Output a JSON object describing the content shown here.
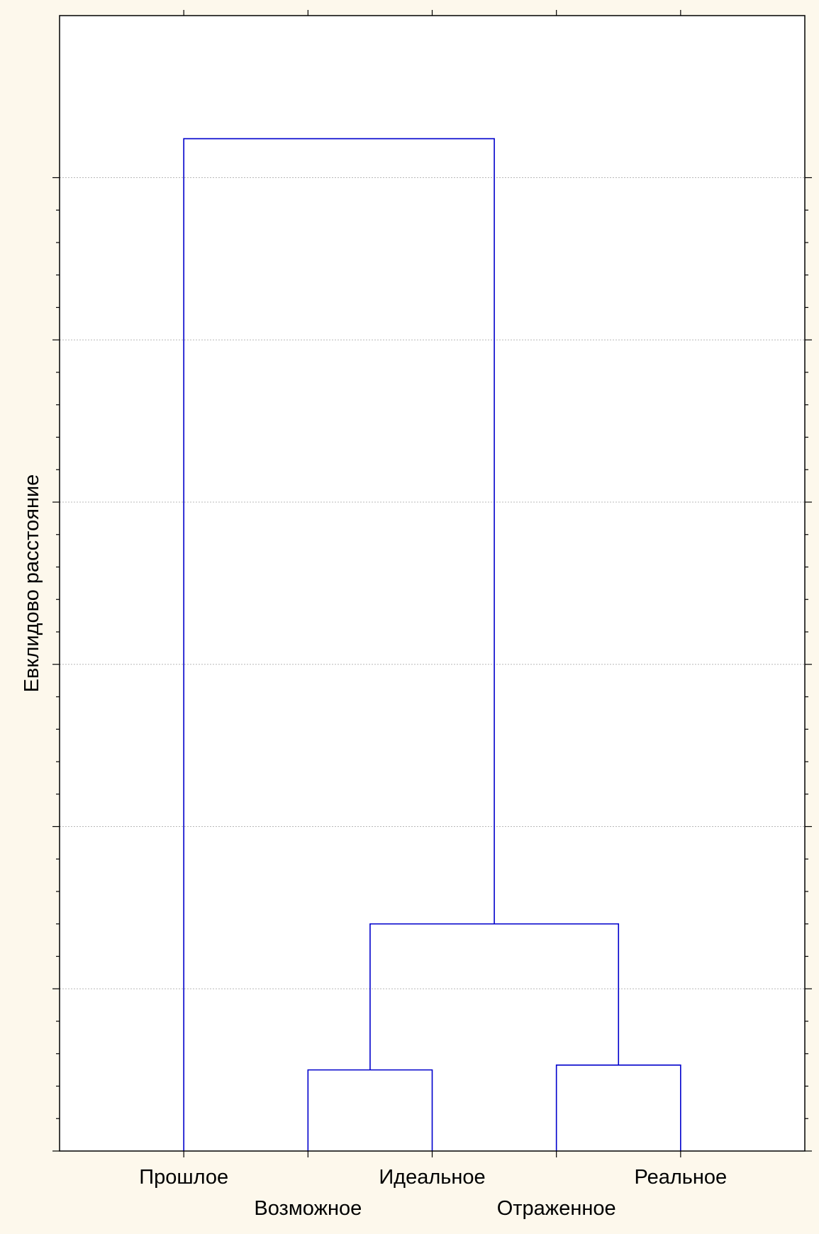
{
  "chart_data": {
    "type": "dendrogram",
    "ylabel": "Евклидово расстояние",
    "title": "",
    "xlabel": "",
    "leaves": [
      "Прошлое",
      "Возможное",
      "Идеальное",
      "Отраженное",
      "Реальное"
    ],
    "ylim": [
      0,
      30
    ],
    "major_ticks": [
      0,
      5,
      10,
      15,
      20,
      25,
      30
    ],
    "minor_tick_step": 1,
    "grid": "horizontal dotted at major ticks",
    "y_tick_labels_shown": false,
    "merges": [
      {
        "name": "Возможное+Идеальное",
        "left": "Возможное",
        "right": "Идеальное",
        "height": 2.5
      },
      {
        "name": "Отраженное+Реальное",
        "left": "Отраженное",
        "right": "Реальное",
        "height": 2.65
      },
      {
        "name": "Возможное+Идеальное+Отраженное+Реальное",
        "left": "Возможное+Идеальное",
        "right": "Отраженное+Реальное",
        "height": 7.0
      },
      {
        "name": "all",
        "left": "Прошлое",
        "right": "Возможное+Идеальное+Отраженное+Реальное",
        "height": 31.2
      }
    ]
  },
  "colors": {
    "background": "#fdf8ec",
    "plot_background": "#ffffff",
    "link_color": "#0000cc",
    "axis_color": "#000000",
    "grid_color": "#b8b8b8"
  }
}
